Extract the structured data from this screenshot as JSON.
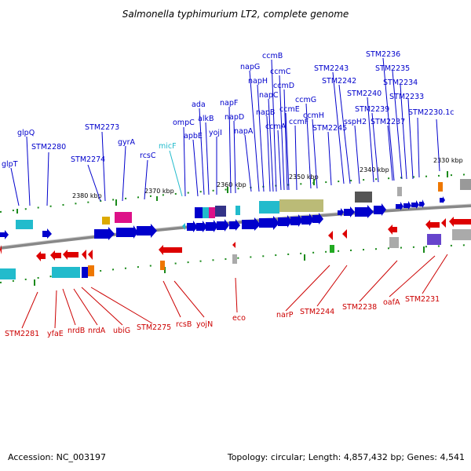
{
  "title": "Salmonella typhimurium LT2, complete genome",
  "footer": {
    "accession": "Accession: NC_003197",
    "summary": "Topology: circular; Length: 4,857,432 bp; Genes: 4,541"
  },
  "colors": {
    "forward_strand": "#0000cc",
    "reverse_strand": "#cc0000",
    "rna": "#22bbcc"
  },
  "scale_ticks": [
    "2380 kbp",
    "2370 kbp",
    "2360 kbp",
    "2350 kbp",
    "2340 kbp",
    "2330 kbp"
  ],
  "forward_labels": [
    "glpT",
    "glpQ",
    "STM2280",
    "STM2274",
    "STM2273",
    "gyrA",
    "rcsC",
    "micF",
    "ompC",
    "apbE",
    "ada",
    "alkB",
    "yojI",
    "napF",
    "napD",
    "napA",
    "napG",
    "napH",
    "napB",
    "napC",
    "ccmB",
    "ccmC",
    "ccmD",
    "ccmA",
    "ccmE",
    "ccmF",
    "ccmG",
    "ccmH",
    "STM2245",
    "STM2243",
    "STM2242",
    "sspH2",
    "STM2240",
    "STM2239",
    "STM2237",
    "STM2236",
    "STM2235",
    "STM2234",
    "STM2233",
    "STM2230.1c"
  ],
  "reverse_labels": [
    "STM2281",
    "yfaE",
    "nrdB",
    "nrdA",
    "ubiG",
    "STM2275",
    "rcsB",
    "yojN",
    "eco",
    "narP",
    "STM2244",
    "STM2238",
    "oafA",
    "STM2231"
  ]
}
